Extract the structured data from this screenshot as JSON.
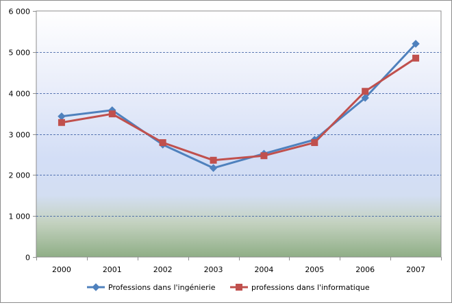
{
  "chart_data": {
    "type": "line",
    "title": "",
    "xlabel": "",
    "ylabel": "",
    "categories": [
      "2000",
      "2001",
      "2002",
      "2003",
      "2004",
      "2005",
      "2006",
      "2007"
    ],
    "ylim": [
      0,
      6000
    ],
    "yticks": [
      0,
      1000,
      2000,
      3000,
      4000,
      5000,
      6000
    ],
    "ytick_labels": [
      "0",
      "1 000",
      "2 000",
      "3 000",
      "4 000",
      "5 000",
      "6 000"
    ],
    "grid": "horizontal dashed",
    "legend_position": "bottom",
    "series": [
      {
        "name": "Professions dans l'ingénierie",
        "color": "#4f81bd",
        "marker": "diamond",
        "values": [
          3430,
          3580,
          2740,
          2170,
          2520,
          2860,
          3880,
          5200
        ]
      },
      {
        "name": "professions dans l'informatique",
        "color": "#c0504d",
        "marker": "square",
        "values": [
          3280,
          3490,
          2790,
          2360,
          2470,
          2790,
          4040,
          4850
        ]
      }
    ]
  }
}
